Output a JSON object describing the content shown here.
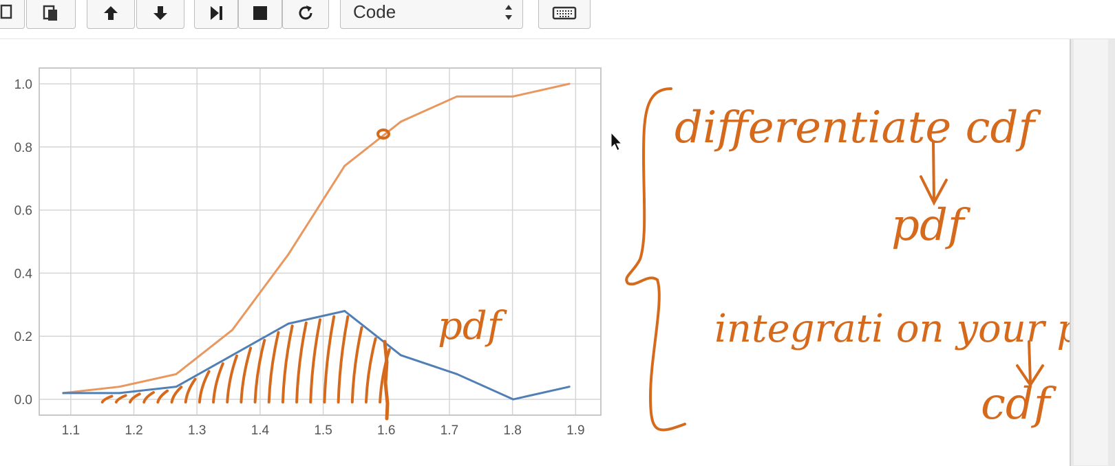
{
  "toolbar": {
    "cell_type_select": {
      "value": "Code"
    }
  },
  "colors": {
    "cdf": "#e8975e",
    "pdf": "#4f7fb4",
    "annotation": "#d66a1c",
    "grid": "#d5d5d5"
  },
  "chart_data": {
    "type": "line",
    "xlim": [
      1.05,
      1.94
    ],
    "ylim": [
      -0.05,
      1.05
    ],
    "grid": true,
    "xticks": [
      "1.1",
      "1.2",
      "1.3",
      "1.4",
      "1.5",
      "1.6",
      "1.7",
      "1.8",
      "1.9"
    ],
    "yticks": [
      "0.0",
      "0.2",
      "0.4",
      "0.6",
      "0.8",
      "1.0"
    ],
    "series": [
      {
        "color": "#e8975e",
        "x": [
          1.088,
          1.177,
          1.267,
          1.356,
          1.445,
          1.534,
          1.623,
          1.712,
          1.801,
          1.89
        ],
        "y": [
          0.02,
          0.04,
          0.08,
          0.22,
          0.46,
          0.74,
          0.88,
          0.96,
          0.96,
          1.0
        ]
      },
      {
        "color": "#4f7fb4",
        "x": [
          1.088,
          1.177,
          1.267,
          1.356,
          1.445,
          1.534,
          1.623,
          1.712,
          1.801,
          1.89
        ],
        "y": [
          0.02,
          0.02,
          0.04,
          0.14,
          0.24,
          0.28,
          0.14,
          0.08,
          0.0,
          0.04
        ]
      }
    ]
  },
  "annotations": {
    "pdf_label": "pdf",
    "line1": "differentiate cdf",
    "line2": "pdf",
    "line3": "integrati on your pdf",
    "line4": "cdf"
  }
}
